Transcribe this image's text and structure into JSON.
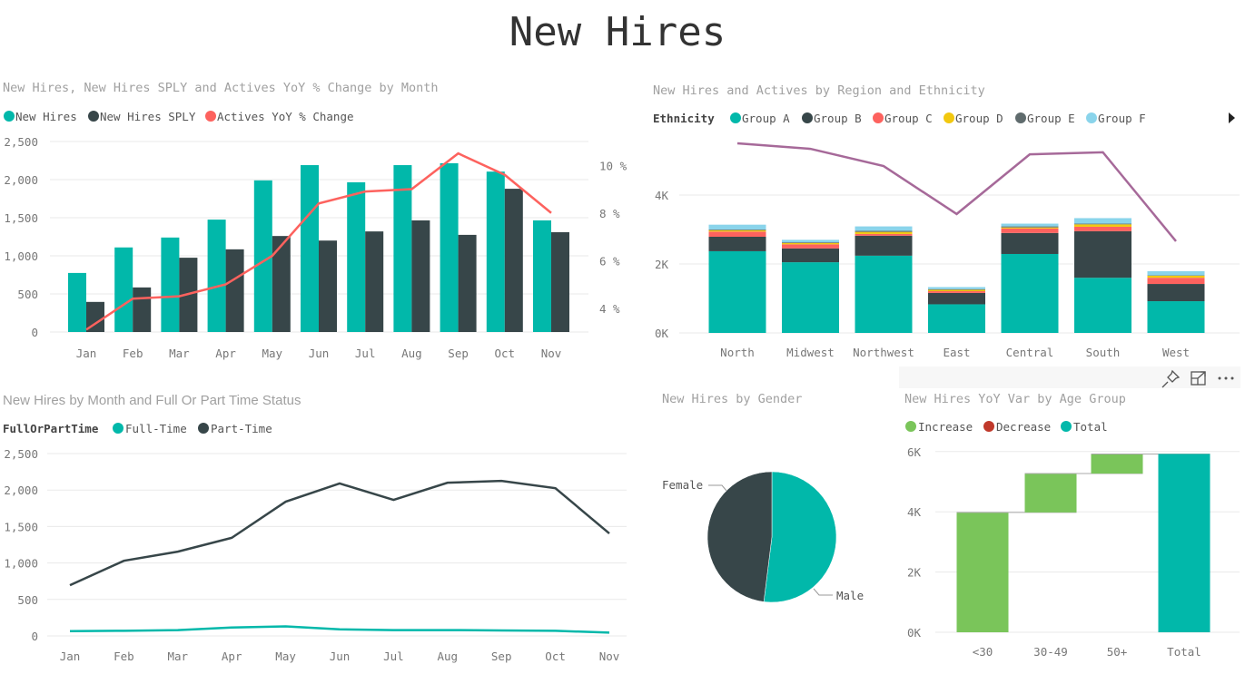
{
  "page": {
    "title": "New Hires"
  },
  "colors": {
    "teal": "#01B8AA",
    "dark": "#374649",
    "red": "#FD625E",
    "yellow": "#F2C80F",
    "grey": "#5F6B6D",
    "light_blue": "#8AD4EB",
    "purple": "#A66999",
    "increase": "#7AC55A",
    "decrease": "#C0392B"
  },
  "visual_header": {
    "icons": [
      "pin-icon",
      "focus-mode-icon",
      "more-options-icon"
    ]
  },
  "chart_data": [
    {
      "type": "bar+line",
      "title": "New Hires, New Hires SPLY and Actives YoY % Change by Month",
      "legend": [
        "New Hires",
        "New Hires SPLY",
        "Actives YoY % Change"
      ],
      "categories": [
        "Jan",
        "Feb",
        "Mar",
        "Apr",
        "May",
        "Jun",
        "Jul",
        "Aug",
        "Sep",
        "Oct",
        "Nov"
      ],
      "series": [
        {
          "name": "New Hires",
          "type": "bar",
          "axis": "left",
          "values": [
            775,
            1110,
            1240,
            1475,
            1990,
            2190,
            1965,
            2190,
            2215,
            2105,
            1465
          ]
        },
        {
          "name": "New Hires SPLY",
          "type": "bar",
          "axis": "left",
          "values": [
            395,
            585,
            975,
            1085,
            1260,
            1200,
            1320,
            1465,
            1275,
            1880,
            1310
          ]
        },
        {
          "name": "Actives YoY % Change",
          "type": "line",
          "axis": "right",
          "values": [
            3.1,
            4.4,
            4.5,
            5.0,
            6.2,
            8.4,
            8.9,
            9.0,
            10.5,
            9.6,
            8.0
          ]
        }
      ],
      "ylim": [
        0,
        2500
      ],
      "yticks": [
        "0",
        "500",
        "1,000",
        "1,500",
        "2,000",
        "2,500"
      ],
      "y2lim": [
        3,
        11
      ],
      "y2ticks": [
        "4 %",
        "6 %",
        "8 %",
        "10 %"
      ],
      "grid": true,
      "legend_position": "top-left"
    },
    {
      "type": "stacked-bar+line",
      "title": "New Hires and Actives by Region and Ethnicity",
      "legend_title": "Ethnicity",
      "legend": [
        "Group A",
        "Group B",
        "Group C",
        "Group D",
        "Group E",
        "Group F"
      ],
      "categories": [
        "North",
        "Midwest",
        "Northwest",
        "East",
        "Central",
        "South",
        "West"
      ],
      "series": [
        {
          "name": "Group A",
          "type": "bar",
          "values": [
            2370,
            2050,
            2240,
            830,
            2290,
            1600,
            920
          ]
        },
        {
          "name": "Group B",
          "type": "bar",
          "values": [
            420,
            400,
            580,
            330,
            610,
            1350,
            500
          ]
        },
        {
          "name": "Group C",
          "type": "bar",
          "values": [
            150,
            120,
            50,
            50,
            130,
            130,
            180
          ]
        },
        {
          "name": "Group D",
          "type": "bar",
          "values": [
            40,
            40,
            60,
            40,
            30,
            70,
            60
          ]
        },
        {
          "name": "Group E",
          "type": "bar",
          "values": [
            20,
            20,
            30,
            20,
            30,
            20,
            10
          ]
        },
        {
          "name": "Group F",
          "type": "bar",
          "values": [
            140,
            70,
            130,
            60,
            80,
            160,
            120
          ]
        },
        {
          "type": "line",
          "values": [
            5500,
            5340,
            4840,
            3450,
            5180,
            5240,
            2660
          ]
        }
      ],
      "ylim": [
        0,
        6000
      ],
      "yticks": [
        "0K",
        "2K",
        "4K"
      ],
      "grid": true,
      "legend_position": "top-left"
    },
    {
      "type": "line",
      "title": "New Hires by Month and Full Or Part Time Status",
      "legend_title": "FullOrPartTime",
      "legend": [
        "Full-Time",
        "Part-Time"
      ],
      "categories": [
        "Jan",
        "Feb",
        "Mar",
        "Apr",
        "May",
        "Jun",
        "Jul",
        "Aug",
        "Sep",
        "Oct",
        "Nov"
      ],
      "series": [
        {
          "name": "Full-Time",
          "values": [
            65,
            70,
            80,
            115,
            130,
            90,
            80,
            80,
            75,
            70,
            45
          ]
        },
        {
          "name": "Part-Time",
          "values": [
            695,
            1030,
            1155,
            1345,
            1840,
            2090,
            1865,
            2100,
            2125,
            2025,
            1405
          ]
        }
      ],
      "ylim": [
        0,
        2500
      ],
      "yticks": [
        "0",
        "500",
        "1,000",
        "1,500",
        "2,000",
        "2,500"
      ],
      "grid": true,
      "legend_position": "top-left"
    },
    {
      "type": "pie",
      "title": "New Hires by Gender",
      "slices": [
        {
          "label": "Male",
          "value": 52
        },
        {
          "label": "Female",
          "value": 48
        }
      ]
    },
    {
      "type": "waterfall",
      "title": "New Hires YoY Var by Age Group",
      "legend": [
        "Increase",
        "Decrease",
        "Total"
      ],
      "categories": [
        "<30",
        "30-49",
        "50+",
        "Total"
      ],
      "values": [
        3980,
        1290,
        650,
        5920
      ],
      "kinds": [
        "increase",
        "increase",
        "increase",
        "total"
      ],
      "ylim": [
        0,
        6000
      ],
      "yticks": [
        "0K",
        "2K",
        "4K",
        "6K"
      ],
      "grid": true,
      "legend_position": "top-left"
    }
  ]
}
